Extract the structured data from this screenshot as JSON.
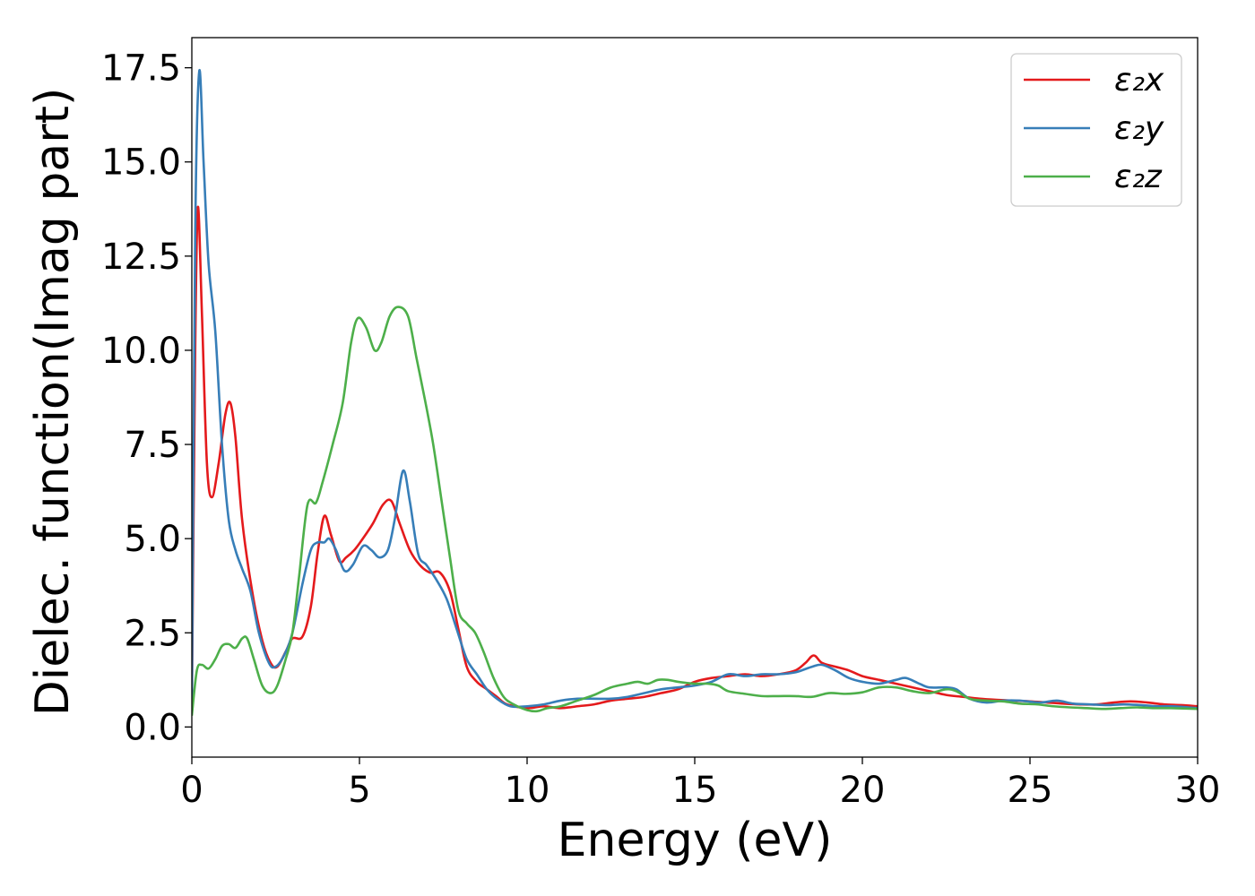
{
  "chart_data": {
    "type": "line",
    "title": "",
    "xlabel": "Energy (eV)",
    "ylabel": "Dielec. function(Imag part)",
    "xlim": [
      0,
      30
    ],
    "ylim": [
      -0.8,
      18.3
    ],
    "x_ticks": [
      0,
      5,
      10,
      15,
      20,
      25,
      30
    ],
    "x_tick_labels": [
      "0",
      "5",
      "10",
      "15",
      "20",
      "25",
      "30"
    ],
    "y_ticks": [
      0.0,
      2.5,
      5.0,
      7.5,
      10.0,
      12.5,
      15.0,
      17.5
    ],
    "y_tick_labels": [
      "0.0",
      "2.5",
      "5.0",
      "7.5",
      "10.0",
      "12.5",
      "15.0",
      "17.5"
    ],
    "grid": false,
    "legend_position": "top-right",
    "series": [
      {
        "name": "ε₂x",
        "color": "#e41a1c",
        "points": [
          [
            0,
            0.5
          ],
          [
            0.1,
            10
          ],
          [
            0.18,
            13.8
          ],
          [
            0.3,
            11
          ],
          [
            0.45,
            7
          ],
          [
            0.6,
            6.1
          ],
          [
            0.8,
            7
          ],
          [
            1.0,
            8.3
          ],
          [
            1.15,
            8.6
          ],
          [
            1.3,
            7.7
          ],
          [
            1.5,
            5.5
          ],
          [
            1.8,
            3.6
          ],
          [
            2.1,
            2.3
          ],
          [
            2.35,
            1.7
          ],
          [
            2.55,
            1.6
          ],
          [
            2.8,
            2.0
          ],
          [
            3.0,
            2.35
          ],
          [
            3.3,
            2.4
          ],
          [
            3.55,
            3.2
          ],
          [
            3.75,
            4.6
          ],
          [
            3.95,
            5.6
          ],
          [
            4.15,
            5.1
          ],
          [
            4.4,
            4.4
          ],
          [
            4.6,
            4.5
          ],
          [
            4.85,
            4.7
          ],
          [
            5.1,
            5.0
          ],
          [
            5.4,
            5.4
          ],
          [
            5.7,
            5.9
          ],
          [
            5.95,
            6.0
          ],
          [
            6.2,
            5.4
          ],
          [
            6.5,
            4.7
          ],
          [
            6.8,
            4.3
          ],
          [
            7.1,
            4.1
          ],
          [
            7.4,
            4.1
          ],
          [
            7.7,
            3.6
          ],
          [
            7.95,
            2.6
          ],
          [
            8.2,
            1.6
          ],
          [
            8.5,
            1.2
          ],
          [
            8.8,
            1.0
          ],
          [
            9.1,
            0.8
          ],
          [
            9.4,
            0.6
          ],
          [
            10,
            0.5
          ],
          [
            10.5,
            0.55
          ],
          [
            11,
            0.5
          ],
          [
            11.5,
            0.55
          ],
          [
            12,
            0.6
          ],
          [
            12.5,
            0.7
          ],
          [
            13,
            0.75
          ],
          [
            13.5,
            0.8
          ],
          [
            14,
            0.9
          ],
          [
            14.5,
            1.0
          ],
          [
            15,
            1.2
          ],
          [
            15.5,
            1.3
          ],
          [
            16,
            1.35
          ],
          [
            16.5,
            1.4
          ],
          [
            17,
            1.35
          ],
          [
            17.5,
            1.4
          ],
          [
            18,
            1.5
          ],
          [
            18.3,
            1.7
          ],
          [
            18.55,
            1.9
          ],
          [
            18.8,
            1.7
          ],
          [
            19.2,
            1.6
          ],
          [
            19.6,
            1.5
          ],
          [
            20,
            1.35
          ],
          [
            20.5,
            1.25
          ],
          [
            21,
            1.15
          ],
          [
            21.5,
            1.05
          ],
          [
            22,
            0.95
          ],
          [
            22.5,
            0.85
          ],
          [
            23,
            0.8
          ],
          [
            23.5,
            0.75
          ],
          [
            24,
            0.72
          ],
          [
            24.5,
            0.7
          ],
          [
            25,
            0.68
          ],
          [
            25.5,
            0.65
          ],
          [
            26,
            0.62
          ],
          [
            26.5,
            0.6
          ],
          [
            27,
            0.6
          ],
          [
            27.5,
            0.65
          ],
          [
            28,
            0.68
          ],
          [
            28.5,
            0.65
          ],
          [
            29,
            0.6
          ],
          [
            29.5,
            0.58
          ],
          [
            30,
            0.55
          ]
        ]
      },
      {
        "name": "ε₂y",
        "color": "#377eb8",
        "points": [
          [
            0,
            0.5
          ],
          [
            0.1,
            13
          ],
          [
            0.22,
            17.4
          ],
          [
            0.35,
            15
          ],
          [
            0.5,
            12.3
          ],
          [
            0.7,
            10.5
          ],
          [
            0.9,
            7.5
          ],
          [
            1.1,
            5.5
          ],
          [
            1.3,
            4.7
          ],
          [
            1.5,
            4.2
          ],
          [
            1.75,
            3.6
          ],
          [
            2.0,
            2.5
          ],
          [
            2.3,
            1.7
          ],
          [
            2.5,
            1.6
          ],
          [
            2.75,
            1.9
          ],
          [
            3.0,
            2.5
          ],
          [
            3.3,
            3.8
          ],
          [
            3.55,
            4.7
          ],
          [
            3.75,
            4.9
          ],
          [
            3.95,
            4.9
          ],
          [
            4.1,
            5.0
          ],
          [
            4.3,
            4.7
          ],
          [
            4.55,
            4.15
          ],
          [
            4.8,
            4.3
          ],
          [
            5.1,
            4.8
          ],
          [
            5.35,
            4.7
          ],
          [
            5.6,
            4.5
          ],
          [
            5.85,
            4.7
          ],
          [
            6.05,
            5.5
          ],
          [
            6.3,
            6.8
          ],
          [
            6.5,
            6.0
          ],
          [
            6.75,
            4.6
          ],
          [
            7.0,
            4.3
          ],
          [
            7.3,
            3.9
          ],
          [
            7.6,
            3.4
          ],
          [
            7.9,
            2.6
          ],
          [
            8.2,
            1.8
          ],
          [
            8.5,
            1.4
          ],
          [
            8.8,
            1.0
          ],
          [
            9.1,
            0.75
          ],
          [
            9.5,
            0.55
          ],
          [
            10,
            0.55
          ],
          [
            10.5,
            0.6
          ],
          [
            11,
            0.7
          ],
          [
            11.5,
            0.75
          ],
          [
            12,
            0.75
          ],
          [
            12.5,
            0.75
          ],
          [
            13,
            0.8
          ],
          [
            13.5,
            0.9
          ],
          [
            14,
            1.0
          ],
          [
            14.5,
            1.05
          ],
          [
            15,
            1.1
          ],
          [
            15.5,
            1.2
          ],
          [
            16,
            1.4
          ],
          [
            16.5,
            1.35
          ],
          [
            17,
            1.4
          ],
          [
            17.5,
            1.4
          ],
          [
            18,
            1.45
          ],
          [
            18.5,
            1.6
          ],
          [
            18.8,
            1.65
          ],
          [
            19.2,
            1.5
          ],
          [
            19.6,
            1.3
          ],
          [
            20,
            1.2
          ],
          [
            20.5,
            1.15
          ],
          [
            21,
            1.25
          ],
          [
            21.3,
            1.3
          ],
          [
            21.7,
            1.15
          ],
          [
            22,
            1.05
          ],
          [
            22.5,
            1.05
          ],
          [
            22.8,
            1.0
          ],
          [
            23.2,
            0.75
          ],
          [
            23.7,
            0.65
          ],
          [
            24.2,
            0.7
          ],
          [
            24.7,
            0.7
          ],
          [
            25.3,
            0.65
          ],
          [
            25.8,
            0.7
          ],
          [
            26.3,
            0.62
          ],
          [
            26.8,
            0.6
          ],
          [
            27.3,
            0.58
          ],
          [
            27.8,
            0.6
          ],
          [
            28.3,
            0.58
          ],
          [
            28.8,
            0.55
          ],
          [
            29.3,
            0.55
          ],
          [
            30,
            0.5
          ]
        ]
      },
      {
        "name": "ε₂z",
        "color": "#4daf4a",
        "points": [
          [
            0,
            0.3
          ],
          [
            0.15,
            1.5
          ],
          [
            0.3,
            1.65
          ],
          [
            0.5,
            1.55
          ],
          [
            0.7,
            1.8
          ],
          [
            0.9,
            2.15
          ],
          [
            1.1,
            2.2
          ],
          [
            1.3,
            2.1
          ],
          [
            1.5,
            2.35
          ],
          [
            1.65,
            2.35
          ],
          [
            1.85,
            1.8
          ],
          [
            2.1,
            1.1
          ],
          [
            2.35,
            0.9
          ],
          [
            2.55,
            1.1
          ],
          [
            2.8,
            1.8
          ],
          [
            3.0,
            2.5
          ],
          [
            3.2,
            4.0
          ],
          [
            3.45,
            5.9
          ],
          [
            3.7,
            5.95
          ],
          [
            3.9,
            6.5
          ],
          [
            4.2,
            7.5
          ],
          [
            4.5,
            8.6
          ],
          [
            4.75,
            10.2
          ],
          [
            4.95,
            10.85
          ],
          [
            5.2,
            10.6
          ],
          [
            5.45,
            10.0
          ],
          [
            5.65,
            10.2
          ],
          [
            5.9,
            10.9
          ],
          [
            6.15,
            11.15
          ],
          [
            6.45,
            10.9
          ],
          [
            6.7,
            9.8
          ],
          [
            6.95,
            8.7
          ],
          [
            7.2,
            7.5
          ],
          [
            7.45,
            6.0
          ],
          [
            7.7,
            4.5
          ],
          [
            7.95,
            3.1
          ],
          [
            8.2,
            2.75
          ],
          [
            8.45,
            2.5
          ],
          [
            8.7,
            2.0
          ],
          [
            9.0,
            1.3
          ],
          [
            9.3,
            0.8
          ],
          [
            9.6,
            0.6
          ],
          [
            10,
            0.45
          ],
          [
            10.3,
            0.42
          ],
          [
            10.6,
            0.5
          ],
          [
            11,
            0.55
          ],
          [
            11.5,
            0.7
          ],
          [
            12,
            0.85
          ],
          [
            12.5,
            1.05
          ],
          [
            13,
            1.15
          ],
          [
            13.3,
            1.2
          ],
          [
            13.6,
            1.15
          ],
          [
            13.9,
            1.25
          ],
          [
            14.2,
            1.25
          ],
          [
            14.5,
            1.2
          ],
          [
            15,
            1.15
          ],
          [
            15.4,
            1.15
          ],
          [
            15.7,
            1.1
          ],
          [
            16,
            0.95
          ],
          [
            16.5,
            0.88
          ],
          [
            17,
            0.82
          ],
          [
            17.5,
            0.82
          ],
          [
            18,
            0.82
          ],
          [
            18.5,
            0.8
          ],
          [
            19,
            0.9
          ],
          [
            19.5,
            0.88
          ],
          [
            20,
            0.92
          ],
          [
            20.5,
            1.05
          ],
          [
            21,
            1.05
          ],
          [
            21.5,
            0.95
          ],
          [
            22,
            0.9
          ],
          [
            22.5,
            1.0
          ],
          [
            22.8,
            0.95
          ],
          [
            23.2,
            0.75
          ],
          [
            23.7,
            0.7
          ],
          [
            24.2,
            0.68
          ],
          [
            24.7,
            0.62
          ],
          [
            25.2,
            0.6
          ],
          [
            25.7,
            0.55
          ],
          [
            26.2,
            0.52
          ],
          [
            26.7,
            0.5
          ],
          [
            27.2,
            0.48
          ],
          [
            27.7,
            0.5
          ],
          [
            28.2,
            0.52
          ],
          [
            28.7,
            0.5
          ],
          [
            29.2,
            0.5
          ],
          [
            30,
            0.48
          ]
        ]
      }
    ]
  }
}
